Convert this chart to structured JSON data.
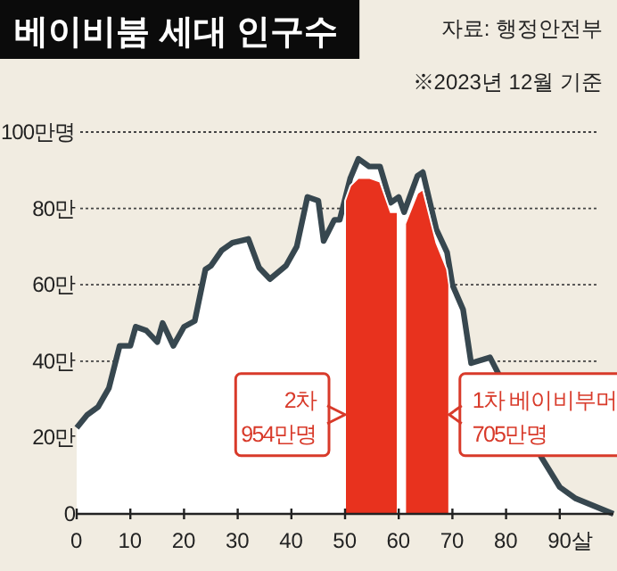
{
  "chart_data": {
    "type": "area",
    "title": "베이비붐 세대 인구수",
    "annotations": [
      "자료: 행정안전부",
      "※2023년 12월 기준",
      {
        "text": "2차\n954만명",
        "x": 50,
        "y": 26
      },
      {
        "text": "1차 베이비부머\n705만명",
        "x": 69.4,
        "y": 26
      }
    ],
    "series": [
      {
        "color": "#37474f",
        "x": [
          0,
          2,
          4,
          6,
          8,
          10,
          11,
          13,
          15,
          16,
          18,
          20,
          22,
          24,
          25,
          27,
          29,
          32,
          34,
          36,
          39,
          41,
          43,
          45,
          46,
          48,
          49,
          51,
          52.5,
          54.5,
          56.5,
          58.5,
          60,
          61,
          63.5,
          64.5,
          67,
          69,
          70,
          72,
          73.5,
          77,
          86.5,
          90,
          93,
          100
        ],
        "values": [
          22.5,
          26,
          28,
          33,
          44,
          44,
          49,
          48,
          45,
          50,
          44,
          49,
          50.5,
          64,
          65,
          69,
          71,
          72,
          64.5,
          61.5,
          65,
          70,
          83,
          82,
          71.5,
          77,
          77,
          88,
          93,
          91,
          91,
          81.5,
          83,
          79,
          88.5,
          89.5,
          74.5,
          68.5,
          60,
          53.5,
          39.5,
          41,
          15,
          7,
          4,
          0
        ]
      },
      {
        "color": "#e8321e",
        "x": [
          50,
          51,
          52.5,
          54.5,
          56.5,
          58.5,
          59.8
        ],
        "values": [
          82,
          86,
          88,
          88,
          87,
          79,
          79
        ]
      },
      {
        "color": "#e8321e",
        "x": [
          61.2,
          63.5,
          64.5,
          67,
          69,
          69.4
        ],
        "values": [
          76,
          84,
          85,
          71,
          64,
          60
        ]
      }
    ],
    "xlim": [
      0,
      100
    ],
    "ylim": [
      0,
      100
    ],
    "xticks": [
      0,
      10,
      20,
      30,
      40,
      50,
      60,
      70,
      80,
      {
        "value": 90,
        "label": "90살"
      }
    ],
    "yticks": [
      0,
      {
        "value": 20,
        "label": "20만"
      },
      {
        "value": 40,
        "label": "40만"
      },
      {
        "value": 60,
        "label": "60만"
      },
      {
        "value": 80,
        "label": "80만"
      },
      {
        "value": 100,
        "label": "100만명"
      }
    ],
    "grid": "y"
  }
}
